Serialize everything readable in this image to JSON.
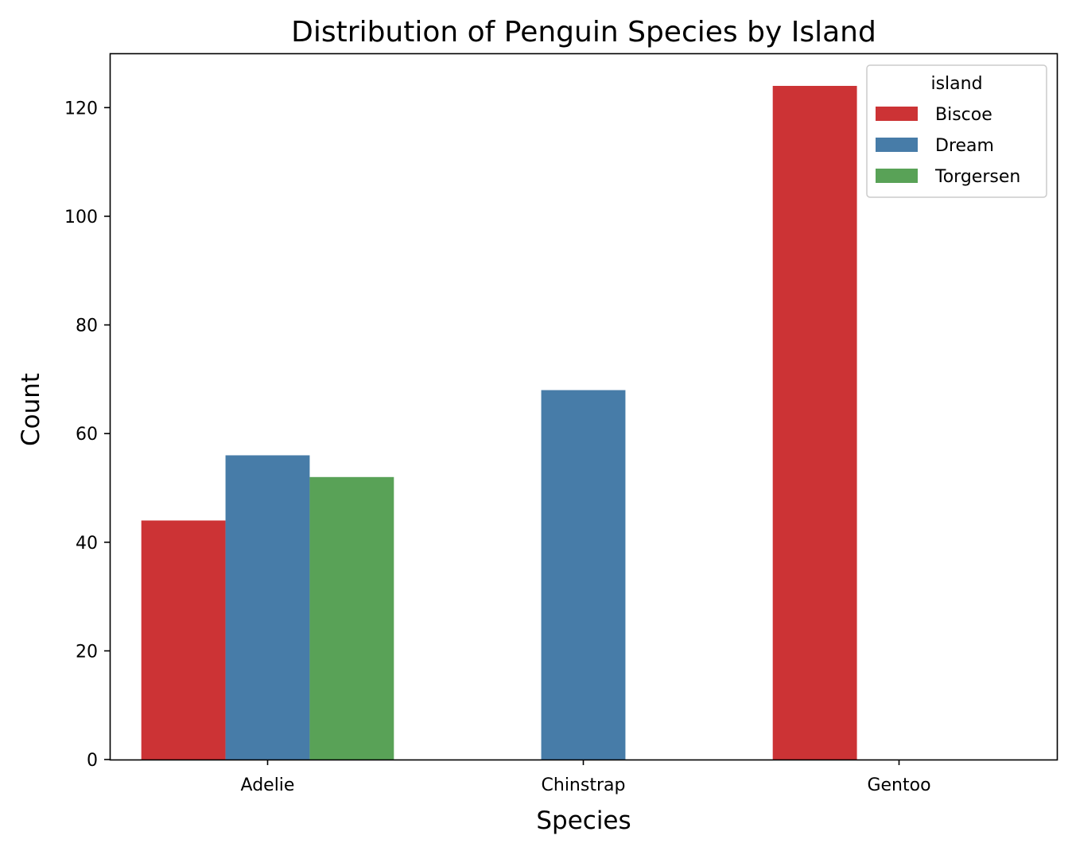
{
  "chart_data": {
    "type": "bar",
    "title": "Distribution of Penguin Species by Island",
    "xlabel": "Species",
    "ylabel": "Count",
    "categories": [
      "Adelie",
      "Chinstrap",
      "Gentoo"
    ],
    "series": [
      {
        "name": "Biscoe",
        "color": "#cc3335",
        "values": [
          44,
          null,
          124
        ]
      },
      {
        "name": "Dream",
        "color": "#477ca8",
        "values": [
          56,
          68,
          null
        ]
      },
      {
        "name": "Torgersen",
        "color": "#59a257",
        "values": [
          52,
          null,
          null
        ]
      }
    ],
    "ylim": [
      0,
      130
    ],
    "yticks": [
      0,
      20,
      40,
      60,
      80,
      100,
      120
    ],
    "grid": false,
    "legend": {
      "title": "island",
      "placement": "top-right"
    }
  }
}
